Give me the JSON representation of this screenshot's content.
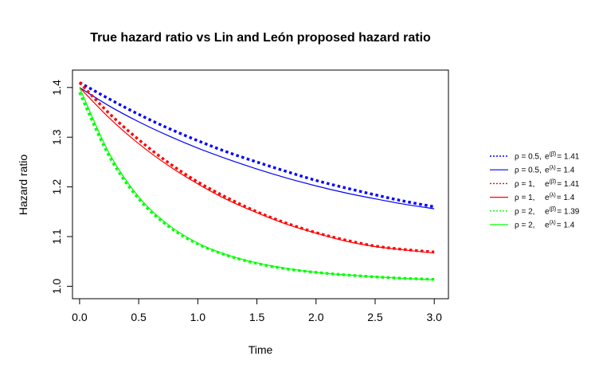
{
  "chart_data": {
    "type": "line",
    "title": "True hazard ratio vs Lin and León proposed hazard ratio",
    "xlabel": "Time",
    "ylabel": "Hazard ratio",
    "xlim": [
      -0.06,
      3.12
    ],
    "ylim": [
      0.975,
      1.435
    ],
    "xticks": [
      "0.0",
      "0.5",
      "1.0",
      "1.5",
      "2.0",
      "2.5",
      "3.0"
    ],
    "yticks": [
      "1.0",
      "1.1",
      "1.2",
      "1.3",
      "1.4"
    ],
    "grid": false,
    "legend_position": "right",
    "x": [
      0,
      0.25,
      0.5,
      0.75,
      1.0,
      1.25,
      1.5,
      1.75,
      2.0,
      2.25,
      2.5,
      2.75,
      3.0
    ],
    "series": [
      {
        "name": "ρ = 0.5,   e^(β̄) = 1.41",
        "rho": "ρ = 0.5,",
        "expr": "e",
        "sup": "(β̄)",
        "val": "= 1.41",
        "color": "#0000ff",
        "style": "dotted",
        "values": [
          1.41,
          1.377,
          1.346,
          1.318,
          1.293,
          1.27,
          1.25,
          1.231,
          1.213,
          1.198,
          1.184,
          1.171,
          1.16
        ]
      },
      {
        "name": "ρ = 0.5,   e^(λ) = 1.4",
        "rho": "ρ = 0.5,",
        "expr": "e",
        "sup": "(λ)",
        "val": "= 1.4",
        "color": "#0000ff",
        "style": "solid",
        "values": [
          1.4,
          1.363,
          1.331,
          1.303,
          1.278,
          1.256,
          1.236,
          1.218,
          1.202,
          1.188,
          1.176,
          1.165,
          1.156
        ]
      },
      {
        "name": "ρ = 1,   e^(β̄) = 1.41",
        "rho": "ρ = 1,",
        "expr": "e",
        "sup": "(β̄)",
        "val": "= 1.41",
        "color": "#ff0000",
        "style": "dotted",
        "values": [
          1.41,
          1.348,
          1.295,
          1.249,
          1.21,
          1.178,
          1.15,
          1.127,
          1.108,
          1.093,
          1.081,
          1.074,
          1.069
        ]
      },
      {
        "name": "ρ = 1,   e^(λ) = 1.4",
        "rho": "ρ = 1,",
        "expr": "e",
        "sup": "(λ)",
        "val": "= 1.4",
        "color": "#ff0000",
        "style": "solid",
        "values": [
          1.4,
          1.339,
          1.287,
          1.243,
          1.206,
          1.174,
          1.148,
          1.125,
          1.107,
          1.091,
          1.08,
          1.073,
          1.067
        ]
      },
      {
        "name": "ρ = 2,   e^(β̄) = 1.39",
        "rho": "ρ = 2,",
        "expr": "e",
        "sup": "(β̄)",
        "val": "= 1.39",
        "color": "#00ff00",
        "style": "dotted",
        "values": [
          1.39,
          1.262,
          1.176,
          1.121,
          1.085,
          1.062,
          1.046,
          1.035,
          1.028,
          1.023,
          1.019,
          1.016,
          1.014
        ]
      },
      {
        "name": "ρ = 2,   e^(λ) = 1.4",
        "rho": "ρ = 2,",
        "expr": "e",
        "sup": "(λ)",
        "val": "= 1.4",
        "color": "#00ff00",
        "style": "solid",
        "values": [
          1.4,
          1.268,
          1.18,
          1.124,
          1.087,
          1.063,
          1.047,
          1.036,
          1.028,
          1.023,
          1.019,
          1.016,
          1.013
        ]
      }
    ]
  }
}
